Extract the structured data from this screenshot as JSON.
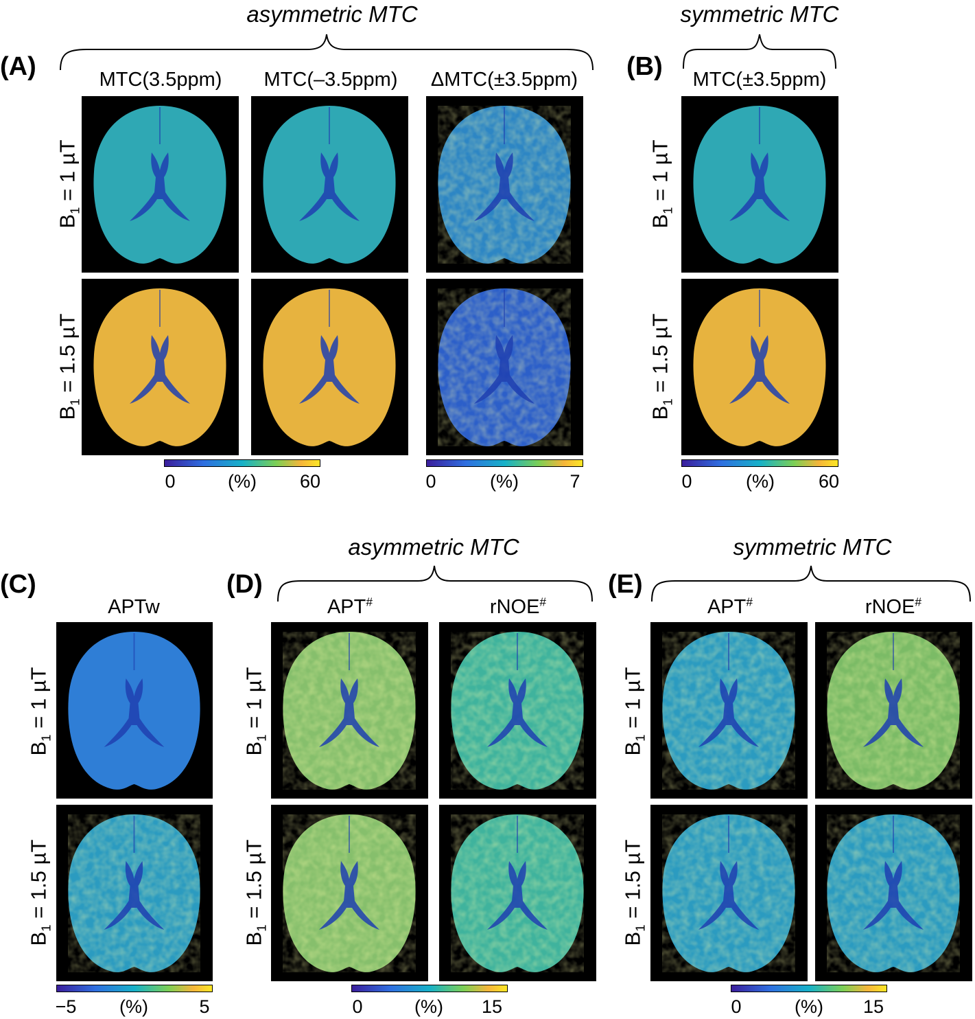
{
  "panel_A": {
    "label": "(A)",
    "group_title": "asymmetric MTC",
    "columns": [
      "MTC(3.5ppm)",
      "MTC(–3.5ppm)",
      "ΔMTC(±3.5ppm)"
    ],
    "rows": [
      {
        "prefix": "B",
        "sub": "1",
        "suffix": " = 1 µT"
      },
      {
        "prefix": "B",
        "sub": "1",
        "suffix": " = 1.5 µT"
      }
    ],
    "colorbar_1": {
      "min": "0",
      "unit": "(%)",
      "max": "60"
    },
    "colorbar_2": {
      "min": "0",
      "unit": "(%)",
      "max": "7"
    }
  },
  "panel_B": {
    "label": "(B)",
    "group_title": "symmetric MTC",
    "columns": [
      "MTC(±3.5ppm)"
    ],
    "rows": [
      {
        "prefix": "B",
        "sub": "1",
        "suffix": " = 1 µT"
      },
      {
        "prefix": "B",
        "sub": "1",
        "suffix": " = 1.5 µT"
      }
    ],
    "colorbar": {
      "min": "0",
      "unit": "(%)",
      "max": "60"
    }
  },
  "panel_C": {
    "label": "(C)",
    "columns": [
      "APTw"
    ],
    "rows": [
      {
        "prefix": "B",
        "sub": "1",
        "suffix": " = 1 µT"
      },
      {
        "prefix": "B",
        "sub": "1",
        "suffix": " = 1.5 µT"
      }
    ],
    "colorbar": {
      "min": "−5",
      "unit": "(%)",
      "max": "5"
    }
  },
  "panel_D": {
    "label": "(D)",
    "group_title": "asymmetric MTC",
    "columns": [
      {
        "text": "APT",
        "sup": "#"
      },
      {
        "text": "rNOE",
        "sup": "#"
      }
    ],
    "rows": [
      {
        "prefix": "B",
        "sub": "1",
        "suffix": " = 1 µT"
      },
      {
        "prefix": "B",
        "sub": "1",
        "suffix": " = 1.5 µT"
      }
    ],
    "colorbar": {
      "min": "0",
      "unit": "(%)",
      "max": "15"
    }
  },
  "panel_E": {
    "label": "(E)",
    "group_title": "symmetric MTC",
    "columns": [
      {
        "text": "APT",
        "sup": "#"
      },
      {
        "text": "rNOE",
        "sup": "#"
      }
    ],
    "rows": [
      {
        "prefix": "B",
        "sub": "1",
        "suffix": " = 1 µT"
      },
      {
        "prefix": "B",
        "sub": "1",
        "suffix": " = 1.5 µT"
      }
    ],
    "colorbar": {
      "min": "0",
      "unit": "(%)",
      "max": "15"
    }
  },
  "colors": {
    "cmap_low": "#3b1e9c",
    "cmap_mid": "#17b1c8",
    "cmap_high": "#fde725",
    "brain_mtc_1uT": "#2fa8b4",
    "brain_mtc_1p5uT": "#e7b33f",
    "brain_dmtc_1uT": "#2d86c4",
    "brain_dmtc_1p5uT": "#2c5fc9",
    "brain_aptw": "#2f7ed6",
    "brain_apt_asym": "#86bf6c",
    "brain_rnoe_asym": "#3fb39d",
    "brain_apt_sym": "#2b9bc0",
    "brain_rnoe_sym": "#7bbb66",
    "background": "#000000"
  }
}
